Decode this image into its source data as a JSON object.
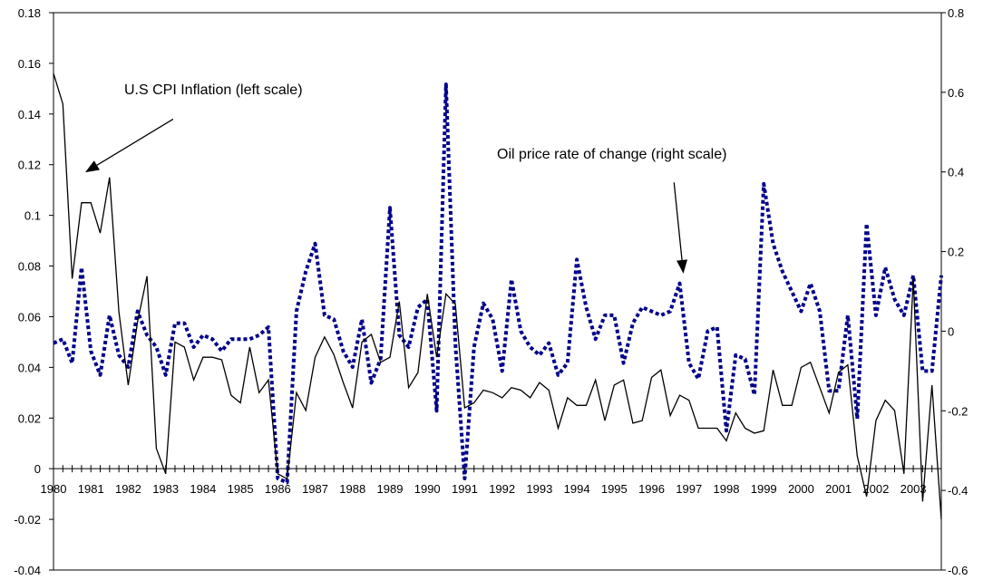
{
  "chart_data": {
    "type": "line",
    "title": "",
    "xlabel": "",
    "ylabel": "",
    "y2label": "",
    "ylim": [
      -0.04,
      0.18
    ],
    "y2lim": [
      -0.6,
      0.8
    ],
    "xlim": [
      1980,
      2003.75
    ],
    "yticks": [
      -0.04,
      -0.02,
      0,
      0.02,
      0.04,
      0.06,
      0.08,
      0.1,
      0.12,
      0.14,
      0.16,
      0.18
    ],
    "ytick_labels": [
      "-0.04",
      "-0.02",
      "0",
      "0.02",
      "0.04",
      "0.06",
      "0.08",
      "0.1",
      "0.12",
      "0.14",
      "0.16",
      "0.18"
    ],
    "y2ticks": [
      -0.6,
      -0.4,
      -0.2,
      0,
      0.2,
      0.4,
      0.6,
      0.8
    ],
    "y2tick_labels": [
      "-0.6",
      "-0.4",
      "-0.2",
      "0",
      "0.2",
      "0.4",
      "0.6",
      "0.8"
    ],
    "xtick_labels": [
      "1980",
      "1981",
      "1982",
      "1983",
      "1984",
      "1985",
      "1986",
      "1987",
      "1988",
      "1989",
      "1990",
      "1991",
      "1992",
      "1993",
      "1994",
      "1995",
      "1996",
      "1997",
      "1998",
      "1999",
      "2000",
      "2001",
      "2002",
      "2003"
    ],
    "grid": false,
    "legend": "none",
    "annotations": [
      {
        "text": "U.S CPI Inflation (left scale)",
        "arrow_from": [
          1983.2,
          0.138
        ],
        "arrow_to": [
          1980.85,
          0.117
        ]
      },
      {
        "text": "Oil price rate of change (right scale)",
        "arrow_from": [
          1996.6,
          0.113
        ],
        "arrow_to": [
          1996.85,
          0.077
        ]
      }
    ],
    "series": [
      {
        "name": "U.S CPI Inflation",
        "axis": "left",
        "color": "#000000",
        "style": "solid",
        "x": [
          1980.0,
          1980.25,
          1980.5,
          1980.75,
          1981.0,
          1981.25,
          1981.5,
          1981.75,
          1982.0,
          1982.25,
          1982.5,
          1982.75,
          1983.0,
          1983.25,
          1983.5,
          1983.75,
          1984.0,
          1984.25,
          1984.5,
          1984.75,
          1985.0,
          1985.25,
          1985.5,
          1985.75,
          1986.0,
          1986.25,
          1986.5,
          1986.75,
          1987.0,
          1987.25,
          1987.5,
          1987.75,
          1988.0,
          1988.25,
          1988.5,
          1988.75,
          1989.0,
          1989.25,
          1989.5,
          1989.75,
          1990.0,
          1990.25,
          1990.5,
          1990.75,
          1991.0,
          1991.25,
          1991.5,
          1991.75,
          1992.0,
          1992.25,
          1992.5,
          1992.75,
          1993.0,
          1993.25,
          1993.5,
          1993.75,
          1994.0,
          1994.25,
          1994.5,
          1994.75,
          1995.0,
          1995.25,
          1995.5,
          1995.75,
          1996.0,
          1996.25,
          1996.5,
          1996.75,
          1997.0,
          1997.25,
          1997.5,
          1997.75,
          1998.0,
          1998.25,
          1998.5,
          1998.75,
          1999.0,
          1999.25,
          1999.5,
          1999.75,
          2000.0,
          2000.25,
          2000.5,
          2000.75,
          2001.0,
          2001.25,
          2001.5,
          2001.75,
          2002.0,
          2002.25,
          2002.5,
          2002.75,
          2003.0,
          2003.25,
          2003.5,
          2003.75
        ],
        "values": [
          0.156,
          0.144,
          0.075,
          0.105,
          0.105,
          0.093,
          0.115,
          0.062,
          0.033,
          0.058,
          0.076,
          0.008,
          -0.002,
          0.05,
          0.048,
          0.035,
          0.044,
          0.044,
          0.043,
          0.029,
          0.026,
          0.048,
          0.03,
          0.035,
          -0.002,
          -0.004,
          0.03,
          0.023,
          0.044,
          0.052,
          0.045,
          0.034,
          0.024,
          0.05,
          0.053,
          0.042,
          0.044,
          0.066,
          0.032,
          0.038,
          0.069,
          0.044,
          0.069,
          0.065,
          0.024,
          0.026,
          0.031,
          0.03,
          0.028,
          0.032,
          0.031,
          0.028,
          0.034,
          0.031,
          0.016,
          0.028,
          0.025,
          0.025,
          0.035,
          0.019,
          0.033,
          0.035,
          0.018,
          0.019,
          0.036,
          0.039,
          0.021,
          0.029,
          0.027,
          0.016,
          0.016,
          0.016,
          0.011,
          0.022,
          0.016,
          0.014,
          0.015,
          0.039,
          0.025,
          0.025,
          0.04,
          0.042,
          0.032,
          0.022,
          0.038,
          0.041,
          0.005,
          -0.011,
          0.019,
          0.027,
          0.023,
          -0.002,
          0.075,
          -0.013,
          0.033,
          -0.02
        ]
      },
      {
        "name": "Oil price rate of change",
        "axis": "right",
        "color": "#00008b",
        "style": "dotted",
        "x": [
          1980.0,
          1980.25,
          1980.5,
          1980.75,
          1981.0,
          1981.25,
          1981.5,
          1981.75,
          1982.0,
          1982.25,
          1982.5,
          1982.75,
          1983.0,
          1983.25,
          1983.5,
          1983.75,
          1984.0,
          1984.25,
          1984.5,
          1984.75,
          1985.0,
          1985.25,
          1985.5,
          1985.75,
          1986.0,
          1986.25,
          1986.5,
          1986.75,
          1987.0,
          1987.25,
          1987.5,
          1987.75,
          1988.0,
          1988.25,
          1988.5,
          1988.75,
          1989.0,
          1989.25,
          1989.5,
          1989.75,
          1990.0,
          1990.25,
          1990.5,
          1990.75,
          1991.0,
          1991.25,
          1991.5,
          1991.75,
          1992.0,
          1992.25,
          1992.5,
          1992.75,
          1993.0,
          1993.25,
          1993.5,
          1993.75,
          1994.0,
          1994.25,
          1994.5,
          1994.75,
          1995.0,
          1995.25,
          1995.5,
          1995.75,
          1996.0,
          1996.25,
          1996.5,
          1996.75,
          1997.0,
          1997.25,
          1997.5,
          1997.75,
          1998.0,
          1998.25,
          1998.5,
          1998.75,
          1999.0,
          1999.25,
          1999.5,
          1999.75,
          2000.0,
          2000.25,
          2000.5,
          2000.75,
          2001.0,
          2001.25,
          2001.5,
          2001.75,
          2002.0,
          2002.25,
          2002.5,
          2002.75,
          2003.0,
          2003.25,
          2003.5,
          2003.75
        ],
        "values": [
          -0.03,
          -0.02,
          -0.08,
          0.16,
          -0.05,
          -0.11,
          0.04,
          -0.06,
          -0.09,
          0.05,
          -0.01,
          -0.04,
          -0.11,
          0.02,
          0.02,
          -0.04,
          -0.01,
          -0.02,
          -0.05,
          -0.02,
          -0.02,
          -0.02,
          -0.01,
          0.01,
          -0.37,
          -0.38,
          0.05,
          0.15,
          0.22,
          0.04,
          0.03,
          -0.05,
          -0.09,
          0.03,
          -0.13,
          -0.07,
          0.31,
          -0.01,
          -0.04,
          0.06,
          0.08,
          -0.2,
          0.62,
          -0.03,
          -0.37,
          -0.04,
          0.07,
          0.03,
          -0.1,
          0.13,
          0.0,
          -0.04,
          -0.06,
          -0.03,
          -0.11,
          -0.08,
          0.18,
          0.06,
          -0.02,
          0.04,
          0.04,
          -0.08,
          0.02,
          0.06,
          0.05,
          0.04,
          0.05,
          0.12,
          -0.08,
          -0.12,
          0.0,
          0.01,
          -0.25,
          -0.06,
          -0.07,
          -0.16,
          0.37,
          0.22,
          0.15,
          0.1,
          0.05,
          0.12,
          0.05,
          -0.15,
          -0.15,
          0.04,
          -0.22,
          0.27,
          0.04,
          0.16,
          0.08,
          0.04,
          0.14,
          -0.1,
          -0.1,
          0.14
        ]
      }
    ]
  }
}
